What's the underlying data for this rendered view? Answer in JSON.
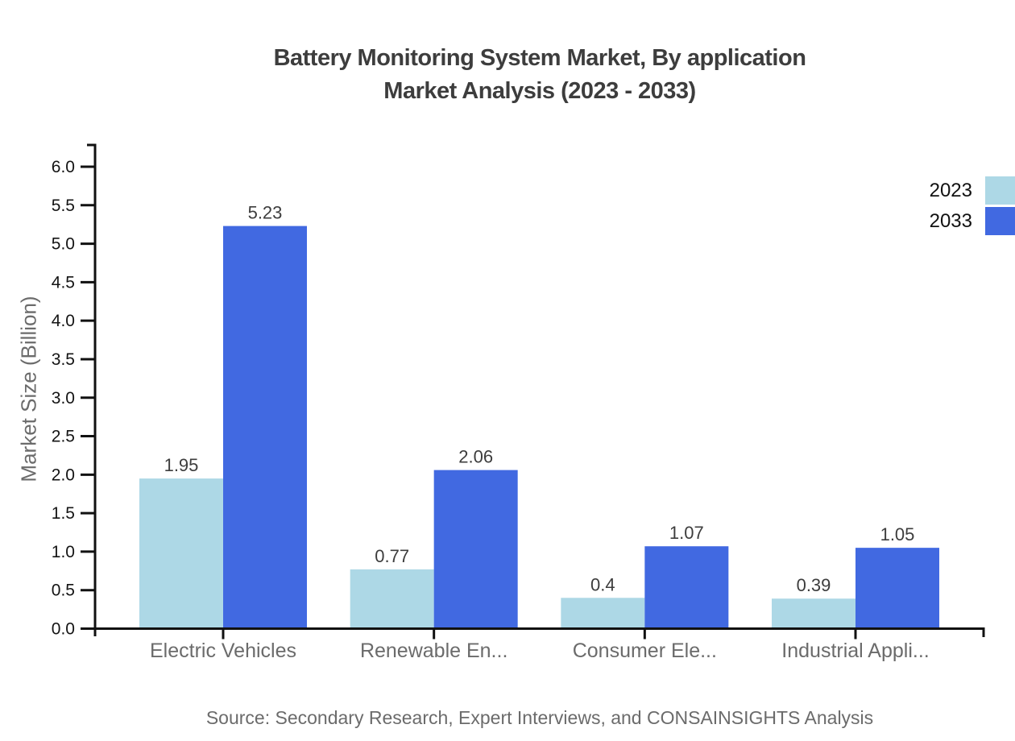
{
  "title": {
    "line1": "Battery Monitoring System Market, By application",
    "line2": "Market Analysis (2023 - 2033)"
  },
  "source": "Source: Secondary Research, Expert Interviews, and CONSAINSIGHTS Analysis",
  "chart_data": {
    "type": "bar",
    "title": "Battery Monitoring System Market, By application Market Analysis (2023 - 2033)",
    "xlabel": "",
    "ylabel": "Market Size (Billion)",
    "categories": [
      "Electric Vehicles",
      "Renewable En...",
      "Consumer Ele...",
      "Industrial Appli..."
    ],
    "series": [
      {
        "name": "2023",
        "color": "#ADD8E6",
        "values": [
          1.95,
          0.77,
          0.4,
          0.39
        ]
      },
      {
        "name": "2033",
        "color": "#4169E1",
        "values": [
          5.23,
          2.06,
          1.07,
          1.05
        ]
      }
    ],
    "ylim": [
      0,
      6.0
    ],
    "ytick_step": 0.5,
    "grid": false,
    "legend_position": "top-right",
    "value_labels_shown": true
  },
  "colors": {
    "axis": "#111111",
    "tick_label": "#141414",
    "category_label": "#6b6b6b",
    "value_label": "#3d3d3d",
    "title_text": "#3d3d3d",
    "muted_text": "#6b6b6b",
    "legend_text": "#111111",
    "background": "#ffffff"
  }
}
